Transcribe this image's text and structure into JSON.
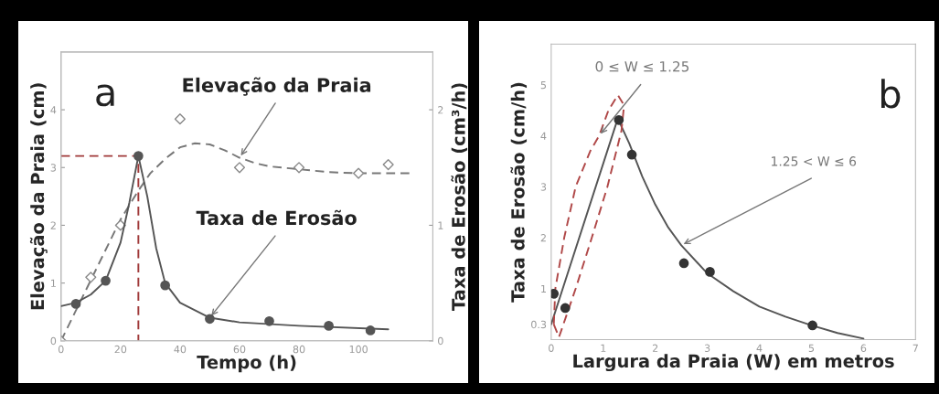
{
  "chart_data": [
    {
      "type": "line",
      "xlabel": "Tempo (h)",
      "ylabel": "Elevação da Praia (cm)",
      "y2label": "Taxa de Erosão (cm³/h)",
      "xlim": [
        0,
        125
      ],
      "ylim": [
        0,
        5
      ],
      "y2lim": [
        0,
        2.5
      ],
      "xticks": [
        0,
        20,
        40,
        60,
        80,
        100
      ],
      "yticks": [
        0,
        1,
        2,
        3,
        4
      ],
      "y2ticks": [
        0,
        1,
        2
      ],
      "grid": false,
      "legend": false,
      "series": [
        {
          "line_style": "dashed",
          "marker": "none",
          "color": "#777777",
          "x": [
            0,
            10,
            20,
            26,
            30,
            35,
            40,
            45,
            50,
            55,
            60,
            65,
            70,
            80,
            90,
            100,
            118
          ],
          "values": [
            0,
            1.05,
            2.1,
            2.6,
            2.9,
            3.15,
            3.35,
            3.42,
            3.4,
            3.3,
            3.17,
            3.08,
            3.02,
            2.97,
            2.92,
            2.9,
            2.9
          ]
        },
        {
          "type": "scatter",
          "marker": "diamond",
          "color": "#888888",
          "x": [
            0,
            10,
            20,
            40,
            60,
            80,
            100,
            110
          ],
          "values": [
            0,
            1.1,
            2.0,
            3.84,
            3.0,
            3.0,
            2.9,
            3.05
          ]
        },
        {
          "axis": "y2",
          "line_style": "solid",
          "marker": "none",
          "color": "#555555",
          "x": [
            0,
            5,
            10,
            15,
            20,
            23,
            26,
            29,
            32,
            35,
            40,
            50,
            60,
            80,
            110
          ],
          "values": [
            0.3,
            0.33,
            0.4,
            0.52,
            0.85,
            1.2,
            1.6,
            1.25,
            0.8,
            0.5,
            0.33,
            0.2,
            0.16,
            0.13,
            0.1
          ]
        },
        {
          "type": "scatter",
          "axis": "y2",
          "marker": "circle",
          "color": "#555555",
          "x": [
            5,
            15,
            26,
            35,
            50,
            70,
            90,
            104
          ],
          "values": [
            0.32,
            0.52,
            1.6,
            0.48,
            0.19,
            0.17,
            0.13,
            0.09
          ]
        },
        {
          "line_style": "dashed",
          "marker": "none",
          "color": "#a03a3a",
          "x": [
            0,
            26,
            26
          ],
          "values": [
            3.2,
            3.2,
            0
          ]
        }
      ],
      "annotations": [
        "a",
        {
          "text": "Elevação da Praia",
          "x": 60,
          "y": 3.17
        },
        {
          "text": "Taxa de Erosão",
          "x": 50,
          "y": 0.4
        }
      ]
    },
    {
      "type": "line",
      "xlabel": "Largura da Praia (W) em metros",
      "ylabel": "Taxa de Erosão (cm/h)",
      "xlim": [
        0,
        7
      ],
      "ylim": [
        0,
        5.8
      ],
      "xticks": [
        0,
        1,
        2,
        3,
        4,
        5,
        6,
        7
      ],
      "yticks": [
        0.3,
        1,
        2,
        3,
        4,
        5
      ],
      "grid": false,
      "legend": false,
      "series": [
        {
          "line_style": "solid",
          "marker": "none",
          "color": "#555555",
          "x": [
            0,
            1.28,
            1.5,
            1.75,
            2,
            2.25,
            2.5,
            3,
            3.5,
            4,
            4.5,
            5,
            5.5,
            6
          ],
          "values": [
            0.3,
            4.34,
            3.85,
            3.2,
            2.65,
            2.2,
            1.85,
            1.3,
            0.95,
            0.65,
            0.45,
            0.28,
            0.13,
            0.02
          ]
        },
        {
          "type": "scatter",
          "marker": "circle",
          "color": "#333333",
          "x": [
            0.05,
            0.27,
            1.3,
            1.55,
            2.55,
            3.05,
            5.02
          ],
          "values": [
            0.9,
            0.62,
            4.31,
            3.63,
            1.5,
            1.33,
            0.28
          ]
        },
        {
          "line_style": "dashed",
          "marker": "none",
          "color": "#b04848",
          "x": [
            0.05,
            0.08,
            0.25,
            0.47,
            0.75,
            0.92,
            1.1,
            1.28,
            1.4,
            null,
            0.05,
            0.15,
            0.47,
            0.78,
            1.08,
            1.35,
            1.4
          ],
          "values": [
            0.3,
            1.0,
            2.0,
            3.0,
            3.7,
            4.0,
            4.5,
            4.8,
            4.6,
            null,
            0.3,
            0.05,
            1.0,
            2.0,
            3.0,
            4.1,
            4.6
          ]
        }
      ],
      "annotations": [
        "b",
        {
          "text": "0 ≤ W ≤ 1.25",
          "x": 0.92,
          "y": 4.0
        },
        {
          "text": "1.25 < W ≤ 6",
          "x": 2.5,
          "y": 1.85
        }
      ]
    }
  ]
}
